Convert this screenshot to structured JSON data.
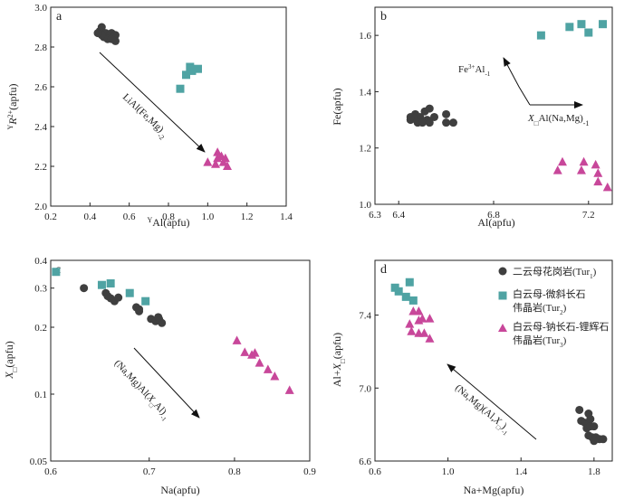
{
  "colors": {
    "tur1": "#3f3f3f",
    "tur2": "#4fa3a3",
    "tur3": "#c8479a",
    "axis": "#222222"
  },
  "chart_data": [
    {
      "type": "scatter",
      "panel_label": "a",
      "xlabel": "YAl(apfu)",
      "ylabel": "YR2+(apfu)",
      "xlim": [
        0.2,
        1.4
      ],
      "ylim": [
        2.0,
        3.0
      ],
      "xticks": [
        "0.2",
        "0.4",
        "0.6",
        "0.8",
        "1.0",
        "1.2",
        "1.4"
      ],
      "yticks": [
        "2.0",
        "2.2",
        "2.4",
        "2.6",
        "2.8",
        "3.0"
      ],
      "grid": false,
      "annotation": "LiAl(Fe,Mg)-2",
      "series": [
        {
          "key": "tur1",
          "marker": "circle",
          "points": [
            [
              0.46,
              2.9
            ],
            [
              0.45,
              2.88
            ],
            [
              0.48,
              2.87
            ],
            [
              0.5,
              2.86
            ],
            [
              0.51,
              2.87
            ],
            [
              0.53,
              2.86
            ],
            [
              0.47,
              2.85
            ],
            [
              0.49,
              2.84
            ],
            [
              0.52,
              2.85
            ],
            [
              0.46,
              2.86
            ],
            [
              0.53,
              2.83
            ],
            [
              0.44,
              2.87
            ],
            [
              0.51,
              2.84
            ]
          ]
        },
        {
          "key": "tur2",
          "marker": "square",
          "points": [
            [
              0.86,
              2.59
            ],
            [
              0.89,
              2.66
            ],
            [
              0.92,
              2.68
            ],
            [
              0.91,
              2.7
            ],
            [
              0.95,
              2.69
            ]
          ]
        },
        {
          "key": "tur3",
          "marker": "triangle",
          "points": [
            [
              1.0,
              2.22
            ],
            [
              1.05,
              2.27
            ],
            [
              1.05,
              2.24
            ],
            [
              1.07,
              2.25
            ],
            [
              1.09,
              2.24
            ],
            [
              1.04,
              2.21
            ],
            [
              1.08,
              2.22
            ],
            [
              1.1,
              2.2
            ]
          ]
        }
      ]
    },
    {
      "type": "scatter",
      "panel_label": "b",
      "xlabel": "Al(apfu)",
      "ylabel": "Fe(apfu)",
      "xlim": [
        6.3,
        7.3
      ],
      "ylim": [
        1.0,
        1.7
      ],
      "xticks": [
        "6.3",
        "6.4",
        "6.8",
        "7.2"
      ],
      "yticks": [
        "1.0",
        "1.2",
        "1.4",
        "1.6"
      ],
      "grid": false,
      "annotations": [
        "Fe3+Al-1",
        "X□Al(Na,Mg)-1"
      ],
      "series": [
        {
          "key": "tur1",
          "marker": "circle",
          "points": [
            [
              6.45,
              1.3
            ],
            [
              6.47,
              1.32
            ],
            [
              6.49,
              1.31
            ],
            [
              6.51,
              1.33
            ],
            [
              6.52,
              1.3
            ],
            [
              6.48,
              1.29
            ],
            [
              6.5,
              1.29
            ],
            [
              6.53,
              1.34
            ],
            [
              6.55,
              1.31
            ],
            [
              6.46,
              1.31
            ],
            [
              6.53,
              1.29
            ],
            [
              6.6,
              1.32
            ],
            [
              6.63,
              1.29
            ],
            [
              6.6,
              1.29
            ],
            [
              6.45,
              1.31
            ]
          ]
        },
        {
          "key": "tur2",
          "marker": "square",
          "points": [
            [
              7.0,
              1.6
            ],
            [
              7.12,
              1.63
            ],
            [
              7.17,
              1.64
            ],
            [
              7.2,
              1.61
            ],
            [
              7.26,
              1.64
            ]
          ]
        },
        {
          "key": "tur3",
          "marker": "triangle",
          "points": [
            [
              7.07,
              1.12
            ],
            [
              7.09,
              1.15
            ],
            [
              7.18,
              1.15
            ],
            [
              7.17,
              1.12
            ],
            [
              7.23,
              1.14
            ],
            [
              7.24,
              1.11
            ],
            [
              7.24,
              1.08
            ],
            [
              7.28,
              1.06
            ]
          ]
        }
      ]
    },
    {
      "type": "scatter",
      "panel_label": "c",
      "xlabel": "Na(apfu)",
      "ylabel": "X□(apfu)",
      "xscale": "log",
      "yscale": "log",
      "xlim": [
        0.6,
        0.9
      ],
      "ylim": [
        0.05,
        0.4
      ],
      "xticks": [
        "0.6",
        "0.7",
        "0.8",
        "0.9"
      ],
      "yticks": [
        "0.05",
        "0.1",
        "0.2",
        "0.3",
        "0.4"
      ],
      "grid": false,
      "annotation": "(Na,Mg)Al(X□Al)-1",
      "series": [
        {
          "key": "tur1",
          "marker": "circle",
          "points": [
            [
              0.632,
              0.3
            ],
            [
              0.654,
              0.285
            ],
            [
              0.659,
              0.27
            ],
            [
              0.663,
              0.262
            ],
            [
              0.667,
              0.272
            ],
            [
              0.686,
              0.246
            ],
            [
              0.689,
              0.241
            ],
            [
              0.689,
              0.236
            ],
            [
              0.702,
              0.218
            ],
            [
              0.707,
              0.213
            ],
            [
              0.711,
              0.217
            ],
            [
              0.714,
              0.209
            ],
            [
              0.71,
              0.222
            ],
            [
              0.656,
              0.276
            ]
          ]
        },
        {
          "key": "tur2",
          "marker": "square",
          "points": [
            [
              0.605,
              0.355
            ],
            [
              0.65,
              0.31
            ],
            [
              0.659,
              0.315
            ],
            [
              0.679,
              0.285
            ],
            [
              0.696,
              0.262
            ]
          ]
        },
        {
          "key": "tur3",
          "marker": "triangle",
          "points": [
            [
              0.803,
              0.174
            ],
            [
              0.813,
              0.154
            ],
            [
              0.822,
              0.15
            ],
            [
              0.832,
              0.138
            ],
            [
              0.843,
              0.129
            ],
            [
              0.852,
              0.12
            ],
            [
              0.872,
              0.104
            ],
            [
              0.826,
              0.153
            ]
          ]
        }
      ]
    },
    {
      "type": "scatter",
      "panel_label": "d",
      "xlabel": "Na+Mg(apfu)",
      "ylabel": "Al+X□(apfu)",
      "xlim": [
        0.6,
        1.9
      ],
      "ylim": [
        6.6,
        7.7
      ],
      "xticks": [
        "0.6",
        "1.0",
        "1.4",
        "1.8"
      ],
      "yticks": [
        "6.6",
        "7.0",
        "7.4"
      ],
      "grid": false,
      "annotation": "(Na,Mg)(Al,X□)-1",
      "legend": [
        "二云母花岗岩(Tur1)",
        "白云母-微斜长石伟晶岩(Tur2)",
        "白云母-钠长石-锂辉石伟晶岩(Tur3)"
      ],
      "legend_position": "top-right",
      "series": [
        {
          "key": "tur1",
          "marker": "circle",
          "points": [
            [
              1.72,
              6.88
            ],
            [
              1.73,
              6.82
            ],
            [
              1.75,
              6.81
            ],
            [
              1.77,
              6.86
            ],
            [
              1.78,
              6.83
            ],
            [
              1.76,
              6.78
            ],
            [
              1.78,
              6.79
            ],
            [
              1.8,
              6.79
            ],
            [
              1.77,
              6.74
            ],
            [
              1.79,
              6.73
            ],
            [
              1.81,
              6.73
            ],
            [
              1.83,
              6.72
            ],
            [
              1.85,
              6.72
            ],
            [
              1.8,
              6.71
            ]
          ]
        },
        {
          "key": "tur2",
          "marker": "square",
          "points": [
            [
              0.71,
              7.55
            ],
            [
              0.73,
              7.53
            ],
            [
              0.77,
              7.5
            ],
            [
              0.79,
              7.58
            ],
            [
              0.81,
              7.48
            ]
          ]
        },
        {
          "key": "tur3",
          "marker": "triangle",
          "points": [
            [
              0.79,
              7.35
            ],
            [
              0.81,
              7.42
            ],
            [
              0.84,
              7.42
            ],
            [
              0.84,
              7.37
            ],
            [
              0.86,
              7.38
            ],
            [
              0.8,
              7.31
            ],
            [
              0.84,
              7.3
            ],
            [
              0.87,
              7.3
            ],
            [
              0.9,
              7.38
            ],
            [
              0.9,
              7.27
            ]
          ]
        }
      ]
    }
  ]
}
